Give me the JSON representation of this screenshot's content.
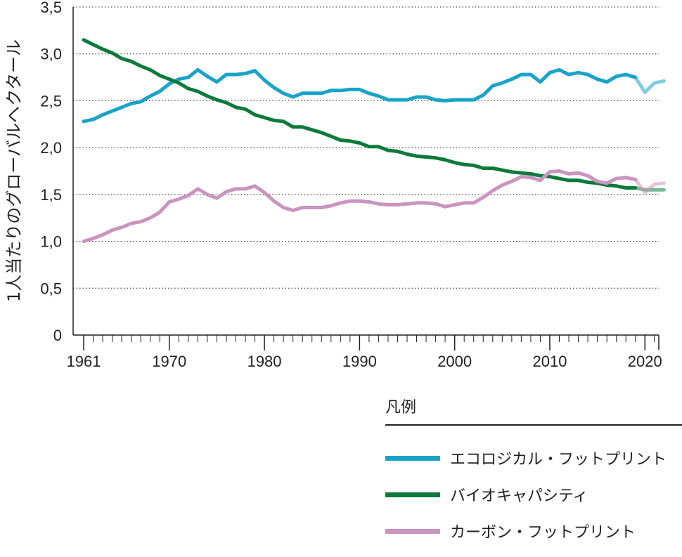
{
  "chart_data": {
    "type": "line",
    "ylabel": "1人当たりのグローバルヘクタール",
    "xlabel": "",
    "ylim": [
      0,
      3.5
    ],
    "xlim": [
      1961,
      2022
    ],
    "yticks": [
      "0",
      "0,5",
      "1,0",
      "1,5",
      "2,0",
      "2,5",
      "3,0",
      "3,5"
    ],
    "xticks": [
      "1961",
      "1970",
      "1980",
      "1990",
      "2000",
      "2010",
      "2020"
    ],
    "grid": "horizontal dotted",
    "legend_title": "凡例",
    "legend_position": "bottom-right",
    "series": [
      {
        "name": "エコロジカル・フットプリント",
        "color": "#1aa3c8",
        "x": [
          1961,
          1962,
          1963,
          1964,
          1965,
          1966,
          1967,
          1968,
          1969,
          1970,
          1971,
          1972,
          1973,
          1974,
          1975,
          1976,
          1977,
          1978,
          1979,
          1980,
          1981,
          1982,
          1983,
          1984,
          1985,
          1986,
          1987,
          1988,
          1989,
          1990,
          1991,
          1992,
          1993,
          1994,
          1995,
          1996,
          1997,
          1998,
          1999,
          2000,
          2001,
          2002,
          2003,
          2004,
          2005,
          2006,
          2007,
          2008,
          2009,
          2010,
          2011,
          2012,
          2013,
          2014,
          2015,
          2016,
          2017,
          2018,
          2019
        ],
        "values": [
          2.28,
          2.3,
          2.35,
          2.39,
          2.43,
          2.47,
          2.49,
          2.55,
          2.6,
          2.68,
          2.73,
          2.75,
          2.83,
          2.76,
          2.7,
          2.78,
          2.78,
          2.79,
          2.82,
          2.72,
          2.64,
          2.58,
          2.54,
          2.58,
          2.58,
          2.58,
          2.61,
          2.61,
          2.62,
          2.62,
          2.58,
          2.55,
          2.51,
          2.51,
          2.51,
          2.54,
          2.54,
          2.51,
          2.5,
          2.51,
          2.51,
          2.51,
          2.56,
          2.66,
          2.69,
          2.73,
          2.78,
          2.78,
          2.7,
          2.8,
          2.83,
          2.78,
          2.8,
          2.78,
          2.73,
          2.7,
          2.76,
          2.78,
          2.75
        ],
        "projection_x": [
          2019,
          2020,
          2021,
          2022
        ],
        "projection_values": [
          2.75,
          2.59,
          2.69,
          2.71
        ]
      },
      {
        "name": "バイオキャパシティ",
        "color": "#0b7a3a",
        "x": [
          1961,
          1962,
          1963,
          1964,
          1965,
          1966,
          1967,
          1968,
          1969,
          1970,
          1971,
          1972,
          1973,
          1974,
          1975,
          1976,
          1977,
          1978,
          1979,
          1980,
          1981,
          1982,
          1983,
          1984,
          1985,
          1986,
          1987,
          1988,
          1989,
          1990,
          1991,
          1992,
          1993,
          1994,
          1995,
          1996,
          1997,
          1998,
          1999,
          2000,
          2001,
          2002,
          2003,
          2004,
          2005,
          2006,
          2007,
          2008,
          2009,
          2010,
          2011,
          2012,
          2013,
          2014,
          2015,
          2016,
          2017,
          2018,
          2019
        ],
        "values": [
          3.15,
          3.1,
          3.05,
          3.01,
          2.95,
          2.92,
          2.87,
          2.83,
          2.77,
          2.73,
          2.69,
          2.63,
          2.6,
          2.55,
          2.51,
          2.48,
          2.43,
          2.41,
          2.35,
          2.32,
          2.29,
          2.28,
          2.22,
          2.22,
          2.19,
          2.16,
          2.12,
          2.08,
          2.07,
          2.05,
          2.01,
          2.01,
          1.97,
          1.96,
          1.93,
          1.91,
          1.9,
          1.89,
          1.87,
          1.84,
          1.82,
          1.81,
          1.78,
          1.78,
          1.76,
          1.74,
          1.73,
          1.72,
          1.7,
          1.69,
          1.67,
          1.65,
          1.65,
          1.63,
          1.62,
          1.6,
          1.59,
          1.57,
          1.57
        ],
        "projection_x": [
          2019,
          2020,
          2021,
          2022
        ],
        "projection_values": [
          1.57,
          1.55,
          1.55,
          1.55
        ]
      },
      {
        "name": "カーボン・フットプリント",
        "color": "#c994c0",
        "x": [
          1961,
          1962,
          1963,
          1964,
          1965,
          1966,
          1967,
          1968,
          1969,
          1970,
          1971,
          1972,
          1973,
          1974,
          1975,
          1976,
          1977,
          1978,
          1979,
          1980,
          1981,
          1982,
          1983,
          1984,
          1985,
          1986,
          1987,
          1988,
          1989,
          1990,
          1991,
          1992,
          1993,
          1994,
          1995,
          1996,
          1997,
          1998,
          1999,
          2000,
          2001,
          2002,
          2003,
          2004,
          2005,
          2006,
          2007,
          2008,
          2009,
          2010,
          2011,
          2012,
          2013,
          2014,
          2015,
          2016,
          2017,
          2018,
          2019
        ],
        "values": [
          1.0,
          1.03,
          1.07,
          1.12,
          1.15,
          1.19,
          1.21,
          1.25,
          1.31,
          1.42,
          1.45,
          1.49,
          1.56,
          1.5,
          1.46,
          1.53,
          1.56,
          1.56,
          1.59,
          1.52,
          1.43,
          1.36,
          1.33,
          1.36,
          1.36,
          1.36,
          1.38,
          1.41,
          1.43,
          1.43,
          1.42,
          1.4,
          1.39,
          1.39,
          1.4,
          1.41,
          1.41,
          1.4,
          1.37,
          1.39,
          1.41,
          1.41,
          1.47,
          1.54,
          1.6,
          1.64,
          1.69,
          1.68,
          1.65,
          1.74,
          1.75,
          1.72,
          1.73,
          1.7,
          1.64,
          1.62,
          1.67,
          1.68,
          1.66
        ],
        "projection_x": [
          2019,
          2020,
          2021,
          2022
        ],
        "projection_values": [
          1.66,
          1.52,
          1.61,
          1.62
        ]
      }
    ]
  }
}
